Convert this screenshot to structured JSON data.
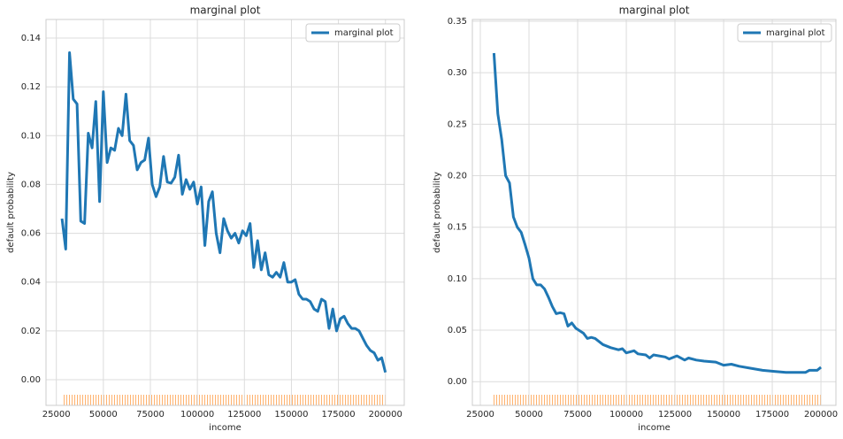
{
  "chart_data": [
    {
      "type": "line",
      "title": "marginal plot",
      "xlabel": "income",
      "ylabel": "default probability",
      "x": [
        28000,
        30000,
        32000,
        34000,
        36000,
        38000,
        40000,
        42000,
        44000,
        46000,
        48000,
        50000,
        52000,
        54000,
        56000,
        58000,
        60000,
        62000,
        64000,
        66000,
        68000,
        70000,
        72000,
        74000,
        76000,
        78000,
        80000,
        82000,
        84000,
        86000,
        88000,
        90000,
        92000,
        94000,
        96000,
        98000,
        100000,
        102000,
        104000,
        106000,
        108000,
        110000,
        112000,
        114000,
        116000,
        118000,
        120000,
        122000,
        124000,
        126000,
        128000,
        130000,
        132000,
        134000,
        136000,
        138000,
        140000,
        142000,
        144000,
        146000,
        148000,
        150000,
        152000,
        154000,
        156000,
        158000,
        160000,
        162000,
        164000,
        166000,
        168000,
        170000,
        172000,
        174000,
        176000,
        178000,
        180000,
        182000,
        184000,
        186000,
        188000,
        190000,
        192000,
        194000,
        196000,
        198000,
        200000
      ],
      "series": [
        {
          "name": "marginal plot",
          "color": "#1f77b4",
          "values": [
            0.066,
            0.0535,
            0.134,
            0.115,
            0.113,
            0.065,
            0.064,
            0.101,
            0.095,
            0.114,
            0.073,
            0.118,
            0.089,
            0.095,
            0.094,
            0.103,
            0.1,
            0.117,
            0.098,
            0.096,
            0.086,
            0.089,
            0.09,
            0.099,
            0.08,
            0.075,
            0.079,
            0.0915,
            0.081,
            0.0805,
            0.083,
            0.092,
            0.076,
            0.082,
            0.078,
            0.081,
            0.072,
            0.079,
            0.055,
            0.073,
            0.077,
            0.06,
            0.052,
            0.066,
            0.061,
            0.058,
            0.06,
            0.056,
            0.061,
            0.059,
            0.064,
            0.046,
            0.057,
            0.045,
            0.052,
            0.043,
            0.042,
            0.044,
            0.042,
            0.048,
            0.04,
            0.04,
            0.041,
            0.035,
            0.033,
            0.033,
            0.032,
            0.029,
            0.028,
            0.033,
            0.032,
            0.021,
            0.029,
            0.02,
            0.025,
            0.026,
            0.023,
            0.021,
            0.021,
            0.02,
            0.017,
            0.014,
            0.012,
            0.011,
            0.008,
            0.009,
            0.003
          ]
        }
      ],
      "xlim": [
        19500,
        210000
      ],
      "xticks": [
        25000,
        50000,
        75000,
        100000,
        125000,
        150000,
        175000,
        200000
      ],
      "ylim": [
        -0.0105,
        0.1476
      ],
      "yticks": [
        {
          "value": 0,
          "label": "0.00"
        },
        {
          "value": 0.02,
          "label": "0.02"
        },
        {
          "value": 0.04,
          "label": "0.04"
        },
        {
          "value": 0.06,
          "label": "0.06"
        },
        {
          "value": 0.08,
          "label": "0.08"
        },
        {
          "value": 0.1,
          "label": "0.10"
        },
        {
          "value": 0.12,
          "label": "0.12"
        },
        {
          "value": 0.14,
          "label": "0.14"
        }
      ],
      "grid": true,
      "legend": "upper right"
    },
    {
      "type": "line",
      "title": "marginal plot",
      "xlabel": "income",
      "ylabel": "default probability",
      "x": [
        32000,
        34000,
        36000,
        38000,
        40000,
        42000,
        44000,
        46000,
        48000,
        50000,
        52000,
        54000,
        56000,
        58000,
        60000,
        62000,
        64000,
        66000,
        68000,
        70000,
        72000,
        74000,
        78000,
        80000,
        82000,
        84000,
        88000,
        92000,
        96000,
        98000,
        100000,
        104000,
        106000,
        110000,
        112000,
        114000,
        120000,
        122000,
        126000,
        130000,
        132000,
        136000,
        140000,
        146000,
        150000,
        154000,
        158000,
        164000,
        170000,
        176000,
        182000,
        188000,
        192000,
        194000,
        198000,
        200000
      ],
      "series": [
        {
          "name": "marginal plot",
          "color": "#1f77b4",
          "values": [
            0.319,
            0.26,
            0.235,
            0.2,
            0.193,
            0.16,
            0.15,
            0.145,
            0.133,
            0.12,
            0.1,
            0.094,
            0.094,
            0.09,
            0.082,
            0.073,
            0.066,
            0.067,
            0.066,
            0.054,
            0.057,
            0.052,
            0.047,
            0.042,
            0.043,
            0.042,
            0.036,
            0.033,
            0.031,
            0.032,
            0.028,
            0.03,
            0.027,
            0.026,
            0.023,
            0.026,
            0.024,
            0.022,
            0.025,
            0.021,
            0.023,
            0.021,
            0.02,
            0.019,
            0.016,
            0.017,
            0.015,
            0.013,
            0.011,
            0.01,
            0.009,
            0.009,
            0.009,
            0.011,
            0.011,
            0.014
          ]
        }
      ],
      "xlim": [
        20900,
        207700
      ],
      "xticks": [
        25000,
        50000,
        75000,
        100000,
        125000,
        150000,
        175000,
        200000
      ],
      "ylim": [
        -0.023,
        0.3517
      ],
      "yticks": [
        {
          "value": 0,
          "label": "0.00"
        },
        {
          "value": 0.05,
          "label": "0.05"
        },
        {
          "value": 0.1,
          "label": "0.10"
        },
        {
          "value": 0.15,
          "label": "0.15"
        },
        {
          "value": 0.2,
          "label": "0.20"
        },
        {
          "value": 0.25,
          "label": "0.25"
        },
        {
          "value": 0.3,
          "label": "0.30"
        },
        {
          "value": 0.35,
          "label": "0.35"
        }
      ],
      "grid": true,
      "legend": "upper right"
    }
  ]
}
